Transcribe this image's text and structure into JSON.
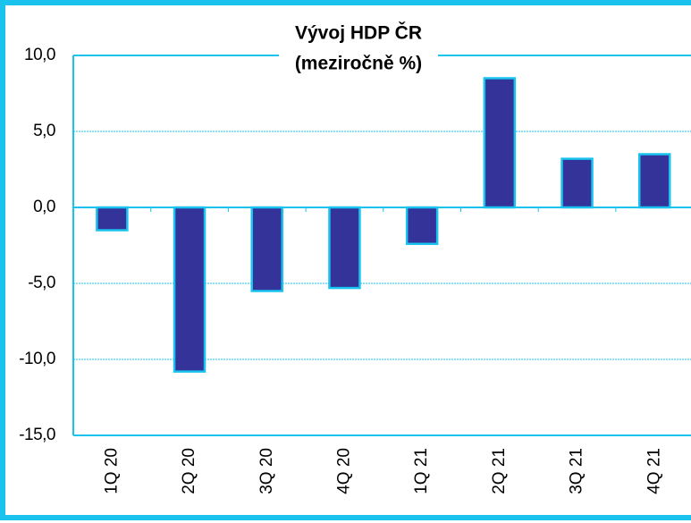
{
  "chart_data": {
    "type": "bar",
    "title": [
      "Vývoj HDP ČR",
      "(meziročně %)"
    ],
    "categories": [
      "1Q 20",
      "2Q 20",
      "3Q 20",
      "4Q 20",
      "1Q 21",
      "2Q 21",
      "3Q 21",
      "4Q 21"
    ],
    "values": [
      -1.5,
      -10.8,
      -5.5,
      -5.3,
      -2.4,
      8.5,
      3.2,
      3.5
    ],
    "color": "#333399",
    "ylim": [
      -15,
      10
    ],
    "yticks": [
      {
        "value": -15,
        "label": "-15,0"
      },
      {
        "value": -10,
        "label": "-10,0"
      },
      {
        "value": -5,
        "label": "-5,0"
      },
      {
        "value": 0,
        "label": "0,0"
      },
      {
        "value": 5,
        "label": "5,0"
      },
      {
        "value": 10,
        "label": "10,0"
      }
    ],
    "grid": true
  }
}
